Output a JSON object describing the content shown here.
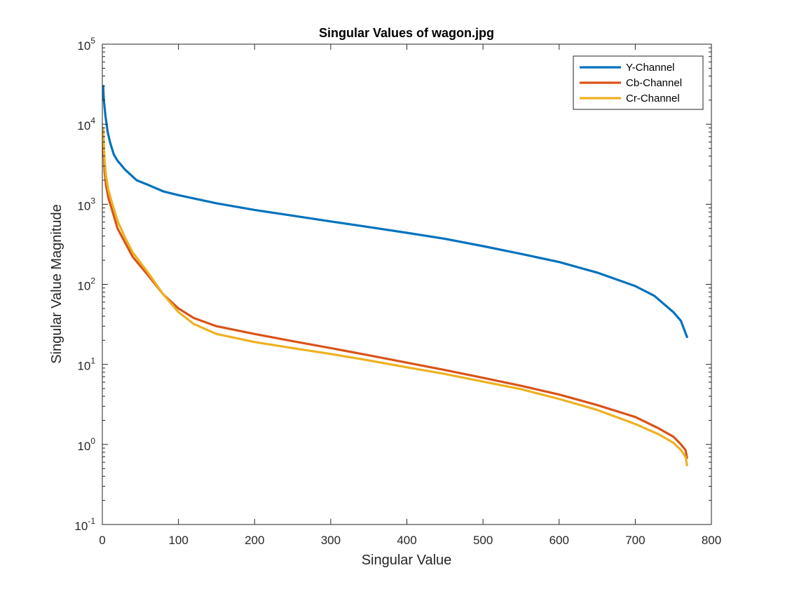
{
  "chart_data": {
    "type": "line",
    "title": "Singular Values of wagon.jpg",
    "xlabel": "Singular Value",
    "ylabel": "Singular Value Magnitude",
    "xlim": [
      0,
      800
    ],
    "ylim": [
      0.1,
      100000
    ],
    "yscale": "log",
    "xticks": [
      0,
      100,
      200,
      300,
      400,
      500,
      600,
      700,
      800
    ],
    "xtick_labels": [
      "0",
      "100",
      "200",
      "300",
      "400",
      "500",
      "600",
      "700",
      "800"
    ],
    "yticks": [
      0.1,
      1,
      10,
      100,
      1000,
      10000,
      100000
    ],
    "ytick_labels": [
      {
        "base": "10",
        "exp": "-1"
      },
      {
        "base": "10",
        "exp": "0"
      },
      {
        "base": "10",
        "exp": "1"
      },
      {
        "base": "10",
        "exp": "2"
      },
      {
        "base": "10",
        "exp": "3"
      },
      {
        "base": "10",
        "exp": "4"
      },
      {
        "base": "10",
        "exp": "5"
      }
    ],
    "grid": false,
    "box": true,
    "legend_position": "top-right",
    "series": [
      {
        "name": "Y-Channel",
        "color": "#0072BD",
        "points": [
          [
            1,
            30000
          ],
          [
            2,
            20000
          ],
          [
            4,
            13000
          ],
          [
            7,
            8000
          ],
          [
            10,
            6000
          ],
          [
            15,
            4200
          ],
          [
            20,
            3500
          ],
          [
            30,
            2700
          ],
          [
            45,
            2000
          ],
          [
            60,
            1750
          ],
          [
            80,
            1450
          ],
          [
            100,
            1300
          ],
          [
            150,
            1030
          ],
          [
            200,
            850
          ],
          [
            250,
            720
          ],
          [
            300,
            610
          ],
          [
            350,
            520
          ],
          [
            400,
            440
          ],
          [
            450,
            370
          ],
          [
            500,
            300
          ],
          [
            550,
            240
          ],
          [
            600,
            190
          ],
          [
            650,
            140
          ],
          [
            700,
            95
          ],
          [
            725,
            72
          ],
          [
            750,
            45
          ],
          [
            760,
            35
          ],
          [
            768,
            22
          ]
        ]
      },
      {
        "name": "Cb-Channel",
        "color": "#D95319",
        "points": [
          [
            1,
            8500
          ],
          [
            2,
            4000
          ],
          [
            3,
            2500
          ],
          [
            5,
            1700
          ],
          [
            8,
            1200
          ],
          [
            12,
            900
          ],
          [
            20,
            500
          ],
          [
            30,
            330
          ],
          [
            40,
            220
          ],
          [
            60,
            130
          ],
          [
            80,
            75
          ],
          [
            100,
            50
          ],
          [
            120,
            38
          ],
          [
            150,
            30
          ],
          [
            200,
            24
          ],
          [
            250,
            19.5
          ],
          [
            300,
            16
          ],
          [
            350,
            13
          ],
          [
            400,
            10.5
          ],
          [
            450,
            8.5
          ],
          [
            500,
            6.8
          ],
          [
            550,
            5.4
          ],
          [
            600,
            4.2
          ],
          [
            650,
            3.1
          ],
          [
            700,
            2.2
          ],
          [
            730,
            1.6
          ],
          [
            750,
            1.25
          ],
          [
            760,
            1.0
          ],
          [
            766,
            0.85
          ],
          [
            768,
            0.68
          ]
        ]
      },
      {
        "name": "Cr-Channel",
        "color": "#EDB120",
        "points": [
          [
            1,
            9000
          ],
          [
            2,
            5500
          ],
          [
            3,
            3500
          ],
          [
            5,
            2200
          ],
          [
            8,
            1500
          ],
          [
            12,
            1100
          ],
          [
            20,
            620
          ],
          [
            30,
            380
          ],
          [
            40,
            250
          ],
          [
            60,
            140
          ],
          [
            80,
            75
          ],
          [
            100,
            45
          ],
          [
            120,
            32
          ],
          [
            150,
            24
          ],
          [
            200,
            19
          ],
          [
            250,
            16
          ],
          [
            300,
            13.5
          ],
          [
            350,
            11.2
          ],
          [
            400,
            9.2
          ],
          [
            450,
            7.6
          ],
          [
            500,
            6.1
          ],
          [
            550,
            4.9
          ],
          [
            600,
            3.7
          ],
          [
            650,
            2.7
          ],
          [
            700,
            1.8
          ],
          [
            730,
            1.35
          ],
          [
            750,
            1.05
          ],
          [
            760,
            0.85
          ],
          [
            766,
            0.7
          ],
          [
            768,
            0.55
          ]
        ]
      }
    ]
  }
}
